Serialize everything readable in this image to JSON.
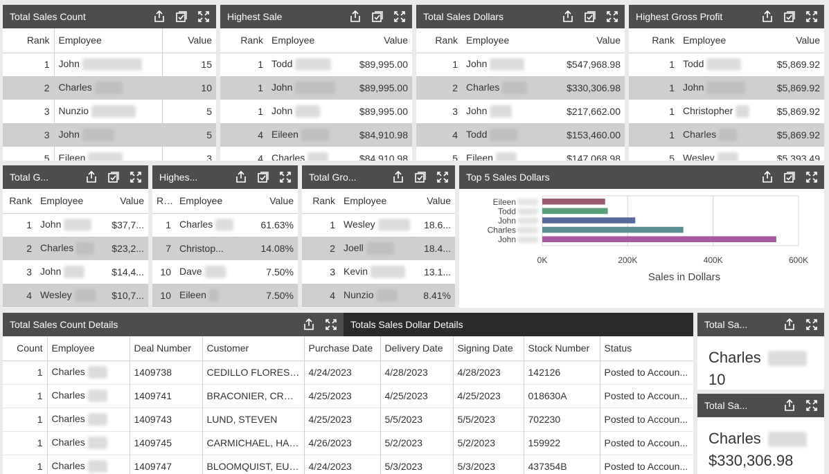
{
  "icons": {
    "export": "export-icon",
    "select": "select-icon",
    "expand": "expand-icon"
  },
  "colors": {
    "header": "#4d4d4d",
    "header_dark": "#2b2b2b",
    "row_alt": "#cfcfcf"
  },
  "p1": {
    "title": "Total Sales Count",
    "cols": {
      "rank": "Rank",
      "employee": "Employee",
      "value": "Value"
    },
    "rows": [
      {
        "rank": "1",
        "name": "John",
        "value": "15"
      },
      {
        "rank": "2",
        "name": "Charles",
        "value": "10"
      },
      {
        "rank": "3",
        "name": "Nunzio",
        "value": "5"
      },
      {
        "rank": "3",
        "name": "John",
        "value": "5"
      },
      {
        "rank": "5",
        "name": "Eileen",
        "value": "3"
      }
    ]
  },
  "p2": {
    "title": "Highest Sale",
    "cols": {
      "rank": "Rank",
      "employee": "Employee",
      "value": "Value"
    },
    "rows": [
      {
        "rank": "1",
        "name": "Todd",
        "value": "$89,995.00"
      },
      {
        "rank": "1",
        "name": "John",
        "value": "$89,995.00"
      },
      {
        "rank": "1",
        "name": "John",
        "value": "$89,995.00"
      },
      {
        "rank": "4",
        "name": "Eileen",
        "value": "$84,910.98"
      },
      {
        "rank": "4",
        "name": "Charles",
        "value": "$84,910.98"
      }
    ]
  },
  "p3": {
    "title": "Total Sales Dollars",
    "cols": {
      "rank": "Rank",
      "employee": "Employee",
      "value": "Value"
    },
    "rows": [
      {
        "rank": "1",
        "name": "John",
        "value": "$547,968.98"
      },
      {
        "rank": "2",
        "name": "Charles",
        "value": "$330,306.98"
      },
      {
        "rank": "3",
        "name": "John",
        "value": "$217,662.00"
      },
      {
        "rank": "4",
        "name": "Todd",
        "value": "$153,460.00"
      },
      {
        "rank": "5",
        "name": "Eileen",
        "value": "$147,068.98"
      }
    ]
  },
  "p4": {
    "title": "Highest Gross Profit",
    "cols": {
      "rank": "Rank",
      "employee": "Employee",
      "value": "Value"
    },
    "rows": [
      {
        "rank": "1",
        "name": "Todd",
        "value": "$5,869.92"
      },
      {
        "rank": "1",
        "name": "John",
        "value": "$5,869.92"
      },
      {
        "rank": "1",
        "name": "Christopher",
        "value": "$5,869.92"
      },
      {
        "rank": "1",
        "name": "Charles",
        "value": "$5,869.92"
      },
      {
        "rank": "5",
        "name": "Wesley",
        "value": "$5,393.49"
      }
    ]
  },
  "p5": {
    "title": "Total G...",
    "cols": {
      "rank": "Rank",
      "employee": "Employee",
      "value": "Value"
    },
    "rows": [
      {
        "rank": "1",
        "name": "John",
        "value": "$37,7..."
      },
      {
        "rank": "2",
        "name": "Charles",
        "value": "$23,2..."
      },
      {
        "rank": "3",
        "name": "John",
        "value": "$14,4..."
      },
      {
        "rank": "4",
        "name": "Wesley",
        "value": "$10,7..."
      }
    ]
  },
  "p6": {
    "title": "Highes...",
    "cols": {
      "rank": "R...",
      "employee": "Employee",
      "value": "Value"
    },
    "rows": [
      {
        "rank": "1",
        "name": "Charles",
        "value": "61.63%"
      },
      {
        "rank": "7",
        "name": "Christop...",
        "value": "14.08%"
      },
      {
        "rank": "10",
        "name": "Dave",
        "value": "7.50%"
      },
      {
        "rank": "10",
        "name": "Eileen",
        "value": "7.50%"
      }
    ]
  },
  "p7": {
    "title": "Total Gro...",
    "cols": {
      "rank": "Rank",
      "employee": "Employee",
      "value": "Value"
    },
    "rows": [
      {
        "rank": "1",
        "name": "Wesley",
        "value": "18.6..."
      },
      {
        "rank": "2",
        "name": "Joell",
        "value": "18.4..."
      },
      {
        "rank": "3",
        "name": "Kevin",
        "value": "13.1..."
      },
      {
        "rank": "4",
        "name": "Nunzio",
        "value": "8.41%"
      }
    ]
  },
  "p8": {
    "title": "Top 5 Sales Dollars"
  },
  "chart_data": {
    "type": "bar",
    "orientation": "horizontal",
    "categories": [
      "Eileen",
      "Todd",
      "John",
      "Charles",
      "John"
    ],
    "values": [
      147068.98,
      153460.0,
      217662.0,
      330306.98,
      547968.98
    ],
    "colors": [
      "#9a5a6e",
      "#5a9e7c",
      "#5a6a9e",
      "#5a8f92",
      "#a85aa0"
    ],
    "xticks": [
      "0K",
      "200K",
      "400K",
      "600K"
    ],
    "xlim": [
      0,
      600000
    ],
    "xlabel": "Sales in Dollars",
    "grid": true
  },
  "p9": {
    "title": "Total Sales Count Details",
    "cols": {
      "count": "Count",
      "employee": "Employee",
      "deal": "Deal Number",
      "customer": "Customer",
      "purchase": "Purchase Date",
      "delivery": "Delivery Date",
      "signing": "Signing Date",
      "stock": "Stock Number",
      "status": "Status"
    },
    "rows": [
      {
        "count": "1",
        "name": "Charles",
        "deal": "1409738",
        "customer": "CEDILLO FLORES, E...",
        "purchase": "4/24/2023",
        "delivery": "4/28/2023",
        "signing": "4/28/2023",
        "stock": "142126",
        "status": "Posted to Accoun..."
      },
      {
        "count": "1",
        "name": "Charles",
        "deal": "1409741",
        "customer": "BRACONIER, CRAIG",
        "purchase": "4/25/2023",
        "delivery": "4/25/2023",
        "signing": "4/25/2023",
        "stock": "018630A",
        "status": "Posted to Accoun..."
      },
      {
        "count": "1",
        "name": "Charles",
        "deal": "1409743",
        "customer": "LUND, STEVEN",
        "purchase": "4/25/2023",
        "delivery": "5/5/2023",
        "signing": "5/5/2023",
        "stock": "702230",
        "status": "Posted to Accoun..."
      },
      {
        "count": "1",
        "name": "Charles",
        "deal": "1409745",
        "customer": "CARMICHAEL, HAR...",
        "purchase": "4/26/2023",
        "delivery": "5/2/2023",
        "signing": "5/2/2023",
        "stock": "159922",
        "status": "Posted to Accoun..."
      },
      {
        "count": "1",
        "name": "Charles",
        "deal": "1409747",
        "customer": "BLOOMQUIST, EUG...",
        "purchase": "4/24/2023",
        "delivery": "5/3/2023",
        "signing": "5/3/2023",
        "stock": "437354B",
        "status": "Posted to Accoun..."
      }
    ]
  },
  "p10": {
    "title": "Totals Sales Dollar Details"
  },
  "p11": {
    "title": "Total Sa...",
    "name": "Charles",
    "value": "10"
  },
  "p12": {
    "title": "Total Sa...",
    "name": "Charles",
    "value": "$330,306.98"
  }
}
